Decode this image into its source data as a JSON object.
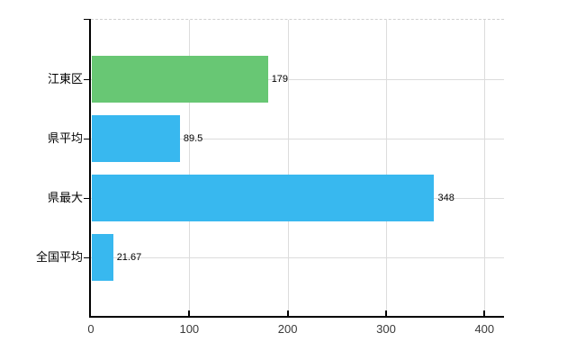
{
  "chart_data": {
    "type": "bar",
    "orientation": "horizontal",
    "title": "",
    "xlabel": "",
    "ylabel": "",
    "categories": [
      "江東区",
      "県平均",
      "県最大",
      "全国平均"
    ],
    "values": [
      179,
      89.5,
      348,
      21.67
    ],
    "value_labels": [
      "179",
      "89.5",
      "348",
      "21.67"
    ],
    "bar_colors": [
      "#68C774",
      "#38B8EF",
      "#38B8EF",
      "#38B8EF"
    ],
    "x_axis": {
      "ticks": [
        0,
        100,
        200,
        300,
        400
      ],
      "tick_labels": [
        "0",
        "100",
        "200",
        "300",
        "400"
      ],
      "range": [
        0,
        420
      ]
    },
    "grid": true,
    "legend_position": "none",
    "colors": {
      "green_bar": "#68C774",
      "blue_bar": "#38B8EF",
      "gridline": "#dcdcdc",
      "axis": "#000000",
      "label_text": "#000000",
      "tick_text": "#3a3a3a",
      "background": "#ffffff"
    }
  }
}
